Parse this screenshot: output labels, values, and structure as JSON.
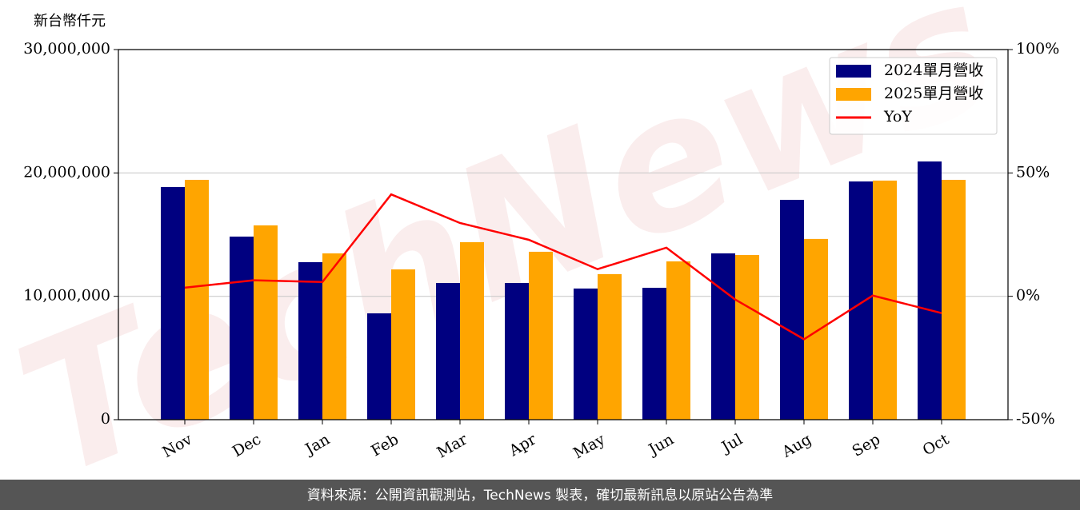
{
  "chart_data": {
    "type": "bar_line",
    "y_unit_label": "新台幣仟元",
    "watermark": "TechNews",
    "categories": [
      "Nov",
      "Dec",
      "Jan",
      "Feb",
      "Mar",
      "Apr",
      "May",
      "Jun",
      "Jul",
      "Aug",
      "Sep",
      "Oct"
    ],
    "series": [
      {
        "name": "2024單月營收",
        "color": "#000080",
        "type": "bar",
        "values": [
          18860000,
          14840000,
          12770000,
          8620000,
          11080000,
          11080000,
          10630000,
          10690000,
          13480000,
          17820000,
          19310000,
          20930000
        ]
      },
      {
        "name": "2025單月營收",
        "color": "#ffa500",
        "type": "bar",
        "values": [
          19440000,
          15750000,
          13480000,
          12180000,
          14390000,
          13610000,
          11800000,
          12830000,
          13350000,
          14650000,
          19380000,
          19440000
        ]
      },
      {
        "name": "YoY",
        "color": "#ff0000",
        "type": "line",
        "axis": "y2",
        "values": [
          3.5,
          6.5,
          5.8,
          41.3,
          29.7,
          22.9,
          11.0,
          19.7,
          -1.3,
          -17.4,
          0.3,
          -6.8
        ]
      }
    ],
    "ylim": [
      0,
      30000000
    ],
    "yticks": [
      0,
      {
        "value": 10000000,
        "label": "10,000,000"
      },
      {
        "value": 20000000,
        "label": "20,000,000"
      },
      {
        "value": 30000000,
        "label": "30,000,000"
      }
    ],
    "y2lim": [
      -50,
      100
    ],
    "y2ticks": [
      {
        "value": -50,
        "label": "-50%"
      },
      {
        "value": 0,
        "label": "0%"
      },
      {
        "value": 50,
        "label": "50%"
      },
      {
        "value": 100,
        "label": "100%"
      }
    ],
    "grid": true,
    "legend": "upper right",
    "footer": "資料來源：公開資訊觀測站，TechNews 製表，確切最新訊息以原站公告為準"
  }
}
